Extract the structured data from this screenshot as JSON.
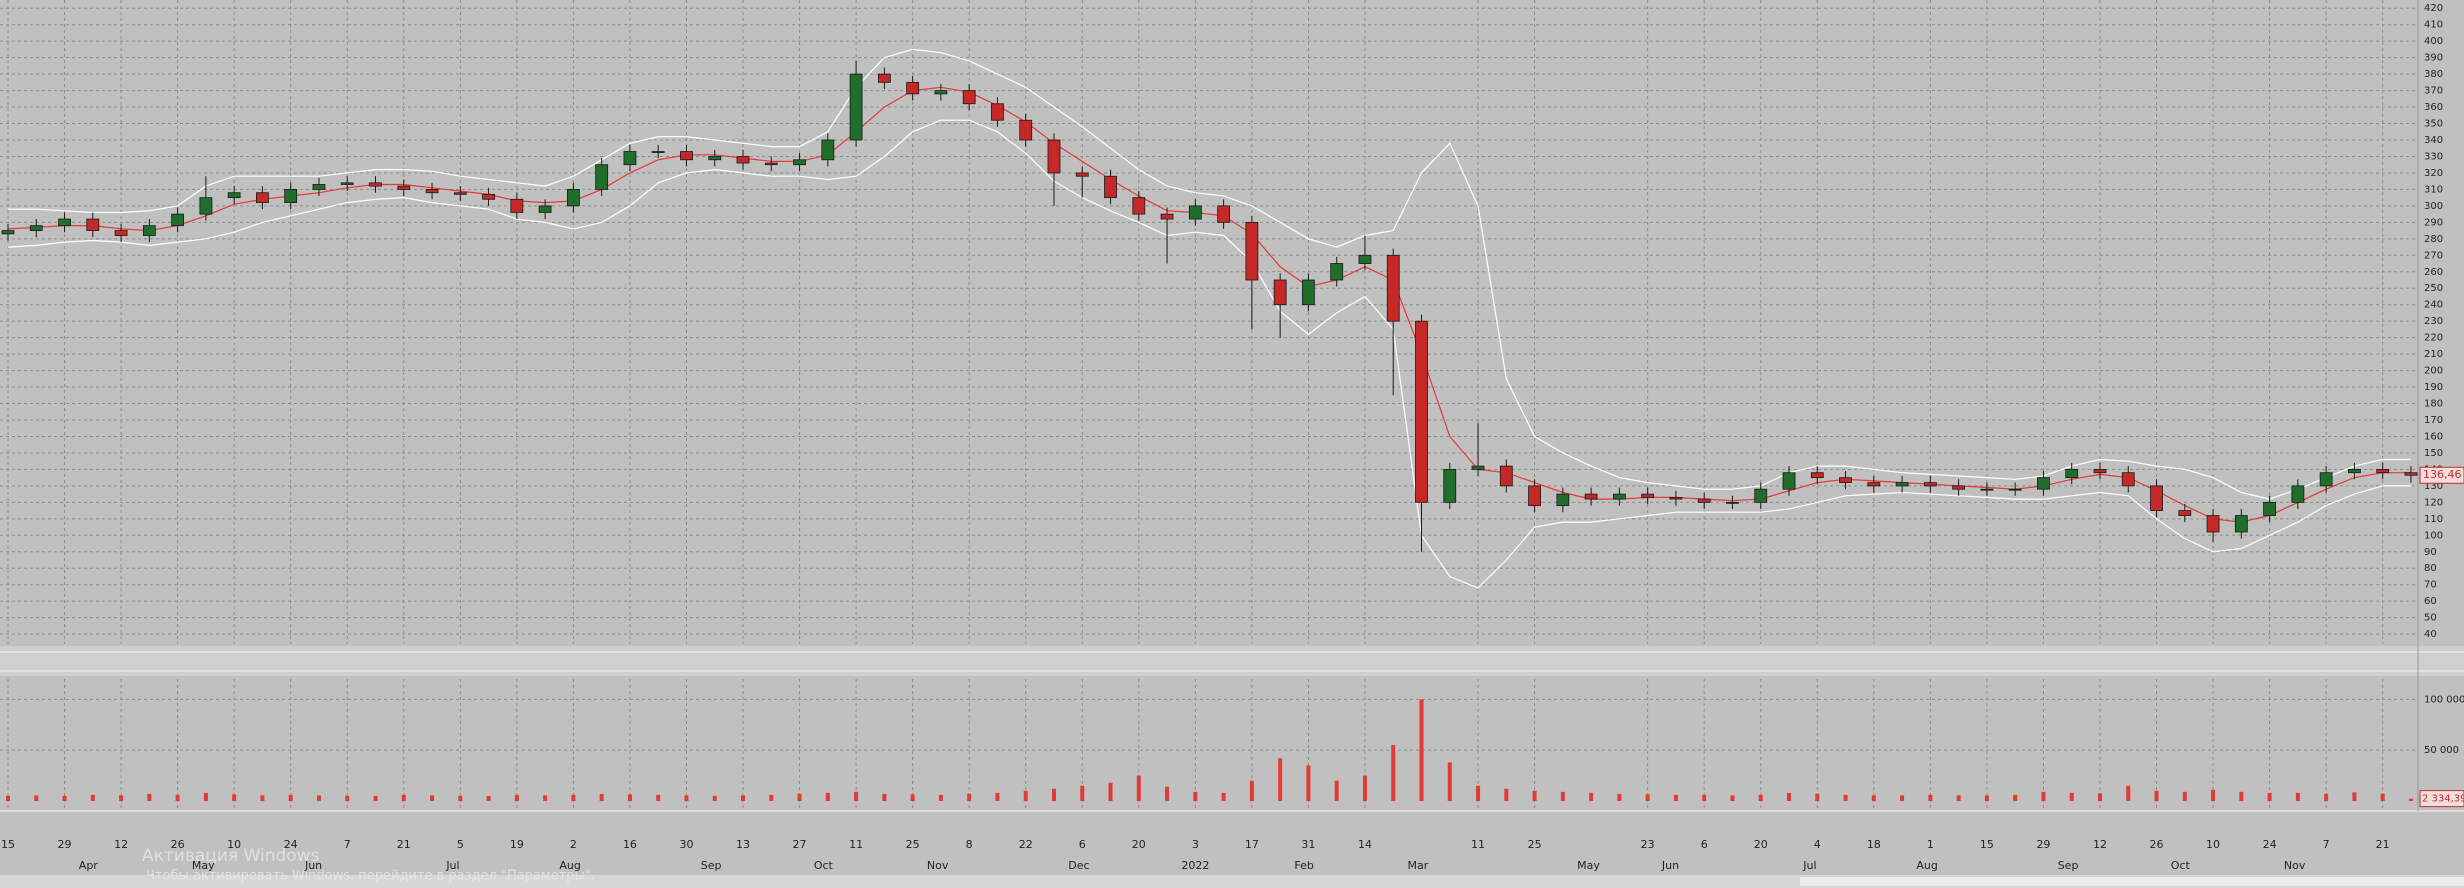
{
  "chart_data": [
    {
      "type": "candlestick",
      "categories": [
        "15",
        null,
        "29",
        null,
        "12",
        null,
        "26",
        null,
        "10",
        null,
        "24",
        null,
        "7",
        null,
        "21",
        null,
        "5",
        null,
        "19",
        null,
        "2",
        null,
        "16",
        null,
        "30",
        null,
        "13",
        null,
        "27",
        null,
        "11",
        null,
        "25",
        null,
        "8",
        null,
        "22",
        null,
        "6",
        null,
        "20",
        null,
        "3",
        null,
        "17",
        null,
        "31",
        null,
        "14",
        null,
        null,
        null,
        "11",
        null,
        "25",
        null,
        null,
        null,
        "23",
        null,
        "6",
        null,
        "20",
        null,
        "4",
        null,
        "18",
        null,
        "1",
        null,
        "15",
        null,
        "29",
        null,
        "12",
        null,
        "26",
        null,
        "10",
        null,
        "24",
        null,
        "7",
        null,
        "21",
        null
      ],
      "months": [
        null,
        null,
        null,
        "Apr",
        null,
        null,
        null,
        "May",
        null,
        null,
        null,
        "Jun",
        null,
        null,
        null,
        null,
        "Jul",
        null,
        null,
        null,
        "Aug",
        null,
        null,
        null,
        null,
        "Sep",
        null,
        null,
        null,
        "Oct",
        null,
        null,
        null,
        "Nov",
        null,
        null,
        null,
        null,
        "Dec",
        null,
        null,
        null,
        "2022",
        null,
        null,
        null,
        "Feb",
        null,
        null,
        null,
        "Mar",
        null,
        null,
        null,
        null,
        null,
        "May",
        null,
        null,
        "Jun",
        null,
        null,
        null,
        null,
        "Jul",
        null,
        null,
        null,
        "Aug",
        null,
        null,
        null,
        null,
        "Sep",
        null,
        null,
        null,
        "Oct",
        null,
        null,
        null,
        "Nov",
        null,
        null,
        null,
        null
      ],
      "open": [
        283,
        285,
        288,
        292,
        285,
        282,
        288,
        295,
        305,
        308,
        302,
        310,
        313,
        314,
        312,
        310,
        308,
        307,
        304,
        296,
        300,
        310,
        325,
        333,
        333,
        328,
        330,
        326,
        325,
        328,
        340,
        380,
        375,
        368,
        370,
        362,
        352,
        340,
        320,
        318,
        305,
        295,
        292,
        300,
        290,
        255,
        240,
        255,
        265,
        270,
        230,
        120,
        140,
        142,
        130,
        118,
        125,
        122,
        125,
        123,
        122,
        120,
        120,
        128,
        138,
        135,
        132,
        130,
        132,
        130,
        128,
        128,
        128,
        135,
        140,
        138,
        130,
        115,
        112,
        102,
        112,
        120,
        130,
        138,
        140,
        138
      ],
      "high": [
        289,
        292,
        296,
        296,
        289,
        292,
        299,
        318,
        312,
        312,
        314,
        317,
        318,
        318,
        316,
        314,
        312,
        311,
        308,
        304,
        314,
        329,
        337,
        337,
        337,
        334,
        334,
        330,
        332,
        344,
        388,
        384,
        379,
        374,
        374,
        366,
        356,
        344,
        324,
        322,
        309,
        299,
        304,
        304,
        294,
        259,
        259,
        269,
        282,
        274,
        234,
        144,
        168,
        146,
        134,
        129,
        129,
        129,
        129,
        127,
        126,
        124,
        132,
        142,
        142,
        139,
        136,
        136,
        136,
        134,
        132,
        132,
        139,
        144,
        144,
        142,
        134,
        119,
        116,
        116,
        124,
        134,
        142,
        144,
        144,
        142
      ],
      "low": [
        279,
        281,
        284,
        281,
        278,
        278,
        284,
        291,
        301,
        298,
        298,
        306,
        309,
        308,
        306,
        304,
        303,
        300,
        292,
        292,
        296,
        306,
        321,
        329,
        324,
        324,
        322,
        321,
        321,
        324,
        336,
        371,
        364,
        364,
        358,
        348,
        336,
        300,
        305,
        301,
        291,
        265,
        288,
        286,
        225,
        220,
        236,
        251,
        261,
        185,
        90,
        116,
        136,
        126,
        114,
        114,
        118,
        118,
        119,
        118,
        116,
        116,
        116,
        124,
        131,
        128,
        126,
        126,
        126,
        124,
        124,
        124,
        124,
        131,
        134,
        126,
        111,
        108,
        96,
        98,
        108,
        116,
        126,
        134,
        134,
        132
      ],
      "close": [
        285,
        288,
        292,
        285,
        282,
        288,
        295,
        305,
        308,
        302,
        310,
        313,
        314,
        312,
        310,
        308,
        307,
        304,
        296,
        300,
        310,
        325,
        333,
        333,
        328,
        330,
        326,
        325,
        328,
        340,
        380,
        375,
        368,
        370,
        362,
        352,
        340,
        320,
        318,
        305,
        295,
        292,
        300,
        290,
        255,
        240,
        255,
        265,
        270,
        230,
        120,
        140,
        142,
        130,
        118,
        125,
        122,
        125,
        123,
        122,
        120,
        120,
        128,
        138,
        135,
        132,
        130,
        132,
        130,
        128,
        128,
        128,
        135,
        140,
        138,
        130,
        115,
        112,
        102,
        112,
        120,
        130,
        138,
        140,
        138,
        136.46
      ],
      "ma": [
        286,
        287,
        288,
        288,
        286,
        285,
        288,
        294,
        301,
        304,
        306,
        308,
        311,
        313,
        313,
        311,
        309,
        307,
        303,
        302,
        303,
        310,
        320,
        328,
        331,
        331,
        329,
        327,
        327,
        331,
        345,
        360,
        370,
        372,
        369,
        361,
        351,
        338,
        327,
        316,
        306,
        297,
        296,
        294,
        283,
        263,
        251,
        255,
        263,
        255,
        210,
        160,
        140,
        138,
        132,
        126,
        122,
        122,
        123,
        123,
        122,
        121,
        122,
        127,
        132,
        134,
        133,
        132,
        131,
        130,
        129,
        128,
        130,
        134,
        137,
        135,
        127,
        118,
        110,
        108,
        112,
        120,
        128,
        135,
        138,
        138
      ],
      "upper": [
        298,
        298,
        297,
        296,
        296,
        297,
        300,
        312,
        318,
        318,
        318,
        318,
        320,
        322,
        322,
        321,
        318,
        316,
        314,
        312,
        318,
        328,
        338,
        342,
        342,
        340,
        338,
        336,
        336,
        345,
        372,
        390,
        395,
        393,
        388,
        380,
        372,
        360,
        348,
        335,
        322,
        312,
        308,
        306,
        300,
        290,
        280,
        275,
        282,
        285,
        320,
        338,
        300,
        195,
        160,
        150,
        142,
        135,
        132,
        130,
        128,
        128,
        130,
        138,
        142,
        142,
        140,
        138,
        137,
        136,
        135,
        134,
        136,
        142,
        146,
        145,
        142,
        140,
        135,
        126,
        122,
        128,
        135,
        142,
        146,
        146
      ],
      "lower": [
        275,
        276,
        278,
        279,
        278,
        276,
        278,
        280,
        284,
        290,
        294,
        298,
        302,
        304,
        305,
        302,
        300,
        298,
        292,
        290,
        286,
        290,
        300,
        314,
        320,
        322,
        320,
        318,
        318,
        316,
        318,
        330,
        345,
        352,
        352,
        345,
        332,
        315,
        305,
        297,
        290,
        282,
        284,
        282,
        266,
        236,
        222,
        235,
        245,
        225,
        100,
        75,
        68,
        85,
        105,
        108,
        108,
        110,
        112,
        114,
        114,
        114,
        114,
        116,
        120,
        124,
        125,
        126,
        125,
        124,
        123,
        122,
        122,
        124,
        126,
        124,
        110,
        98,
        90,
        92,
        100,
        108,
        118,
        125,
        130,
        130
      ],
      "ylim": [
        34,
        425
      ],
      "yticks": [
        40,
        50,
        60,
        70,
        80,
        90,
        100,
        110,
        120,
        130,
        140,
        150,
        160,
        170,
        180,
        190,
        200,
        210,
        220,
        230,
        240,
        250,
        260,
        270,
        280,
        290,
        300,
        310,
        320,
        330,
        340,
        350,
        360,
        370,
        380,
        390,
        400,
        410,
        420
      ],
      "grid": true,
      "up_color": "#1f6e2b",
      "down_color": "#c62828",
      "ma_color": "#e53935",
      "band_color": "#ffffff",
      "last_label": "136,46"
    },
    {
      "type": "bar",
      "values": [
        5000,
        5500,
        5000,
        6000,
        5500,
        7000,
        6000,
        8000,
        6500,
        5500,
        6000,
        5500,
        5000,
        5000,
        6000,
        5500,
        5000,
        5000,
        6000,
        5500,
        6000,
        7000,
        6500,
        6000,
        5500,
        5000,
        5500,
        6000,
        7000,
        8000,
        9000,
        7000,
        6500,
        6000,
        7000,
        8000,
        10000,
        12000,
        15000,
        18000,
        25000,
        14000,
        9000,
        8000,
        20000,
        42000,
        35000,
        20000,
        25000,
        55000,
        100000,
        38000,
        15000,
        12000,
        10000,
        9000,
        8000,
        7000,
        6500,
        6000,
        6000,
        5500,
        6000,
        8000,
        7000,
        6000,
        5500,
        5500,
        6000,
        5500,
        5500,
        6000,
        9000,
        8000,
        7500,
        15000,
        10000,
        9000,
        11000,
        9000,
        8000,
        8000,
        7000,
        8500,
        7000,
        2334.39
      ],
      "color": "#e53935",
      "ylim": [
        0,
        120000
      ],
      "yticks": [
        {
          "value": 50000,
          "label": "50 000"
        },
        {
          "value": 100000,
          "label": "100 000"
        }
      ],
      "grid": true,
      "last_label": "2 334,39"
    }
  ],
  "watermark": {
    "title": "Активация Windows",
    "text": "Чтобы активировать Windows, перейдите в раздел \"Параметры\"."
  }
}
